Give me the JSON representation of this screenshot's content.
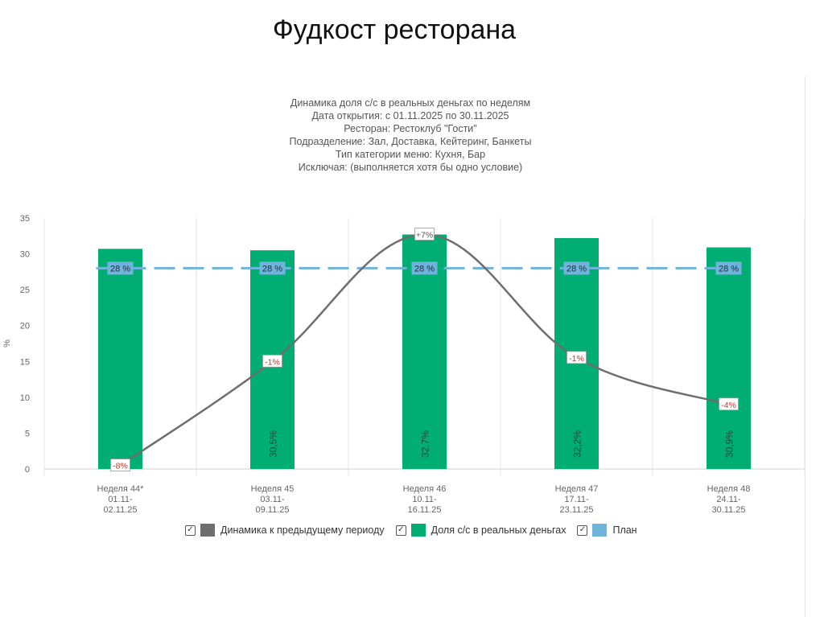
{
  "slide": {
    "title": "Фудкост ресторана"
  },
  "chart_header": [
    "Динамика доля с/с в реальных деньгах по неделям",
    "Дата открытия: с 01.11.2025 по 30.11.2025",
    "Ресторан: Рестоклуб \"Гости\"",
    "Подразделение: Зал, Доставка, Кейтеринг, Банкеты",
    "Тип категории меню: Кухня, Бар",
    "Исключая: (выполняется хотя бы одно условие)"
  ],
  "chart_data": {
    "type": "bar",
    "ylabel": "%",
    "ylim": [
      0,
      35
    ],
    "yticks": [
      "0",
      "5",
      "10",
      "15",
      "20",
      "25",
      "30",
      "35"
    ],
    "categories": [
      [
        "Неделя 44*",
        "01.11-",
        "02.11.25"
      ],
      [
        "Неделя 45",
        "03.11-",
        "09.11.25"
      ],
      [
        "Неделя 46",
        "10.11-",
        "16.11.25"
      ],
      [
        "Неделя 47",
        "17.11-",
        "23.11.25"
      ],
      [
        "Неделя 48",
        "24.11-",
        "30.11.25"
      ]
    ],
    "series": [
      {
        "name": "Динамика к предыдущему периоду",
        "type": "line",
        "color": "#6e6e6e",
        "values": [
          0.5,
          15,
          32.7,
          15.5,
          9
        ],
        "labels": [
          "-8%",
          "-1%",
          "+7%",
          "-1%",
          "-4%"
        ]
      },
      {
        "name": "Доля с/с в реальных деньгах",
        "type": "bar",
        "color": "#00ae74",
        "values": [
          30.7,
          30.5,
          32.7,
          32.2,
          30.9
        ],
        "labels": [
          "",
          "30,5%",
          "32,7%",
          "32,2%",
          "30,9%"
        ]
      },
      {
        "name": "План",
        "type": "line-dashed",
        "color": "#6fb4dc",
        "values": [
          28,
          28,
          28,
          28,
          28
        ],
        "labels": [
          "28 %",
          "28 %",
          "28 %",
          "28 %",
          "28 %"
        ]
      }
    ],
    "legend_position": "bottom",
    "grid": "vertical"
  }
}
